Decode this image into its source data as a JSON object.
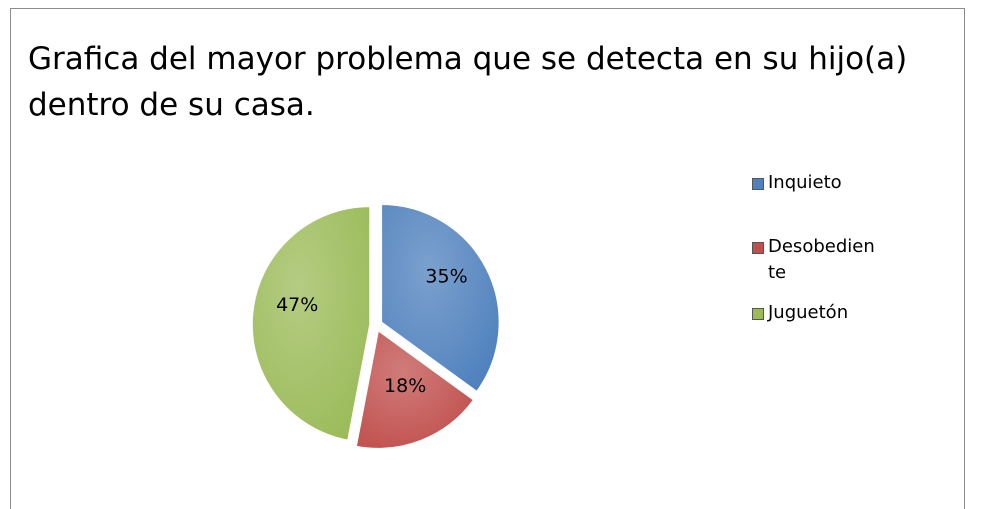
{
  "chart_data": {
    "type": "pie",
    "title": "Grafica del mayor problema que se detecta en su hijo(a) dentro de su casa.",
    "categories": [
      "Inquieto",
      "Desobediente",
      "Juguetón"
    ],
    "values": [
      35,
      18,
      47
    ],
    "value_labels": [
      "35%",
      "18%",
      "47%"
    ],
    "colors": [
      "#4f81bd",
      "#c0504d",
      "#9bbb59"
    ],
    "legend": "right"
  }
}
